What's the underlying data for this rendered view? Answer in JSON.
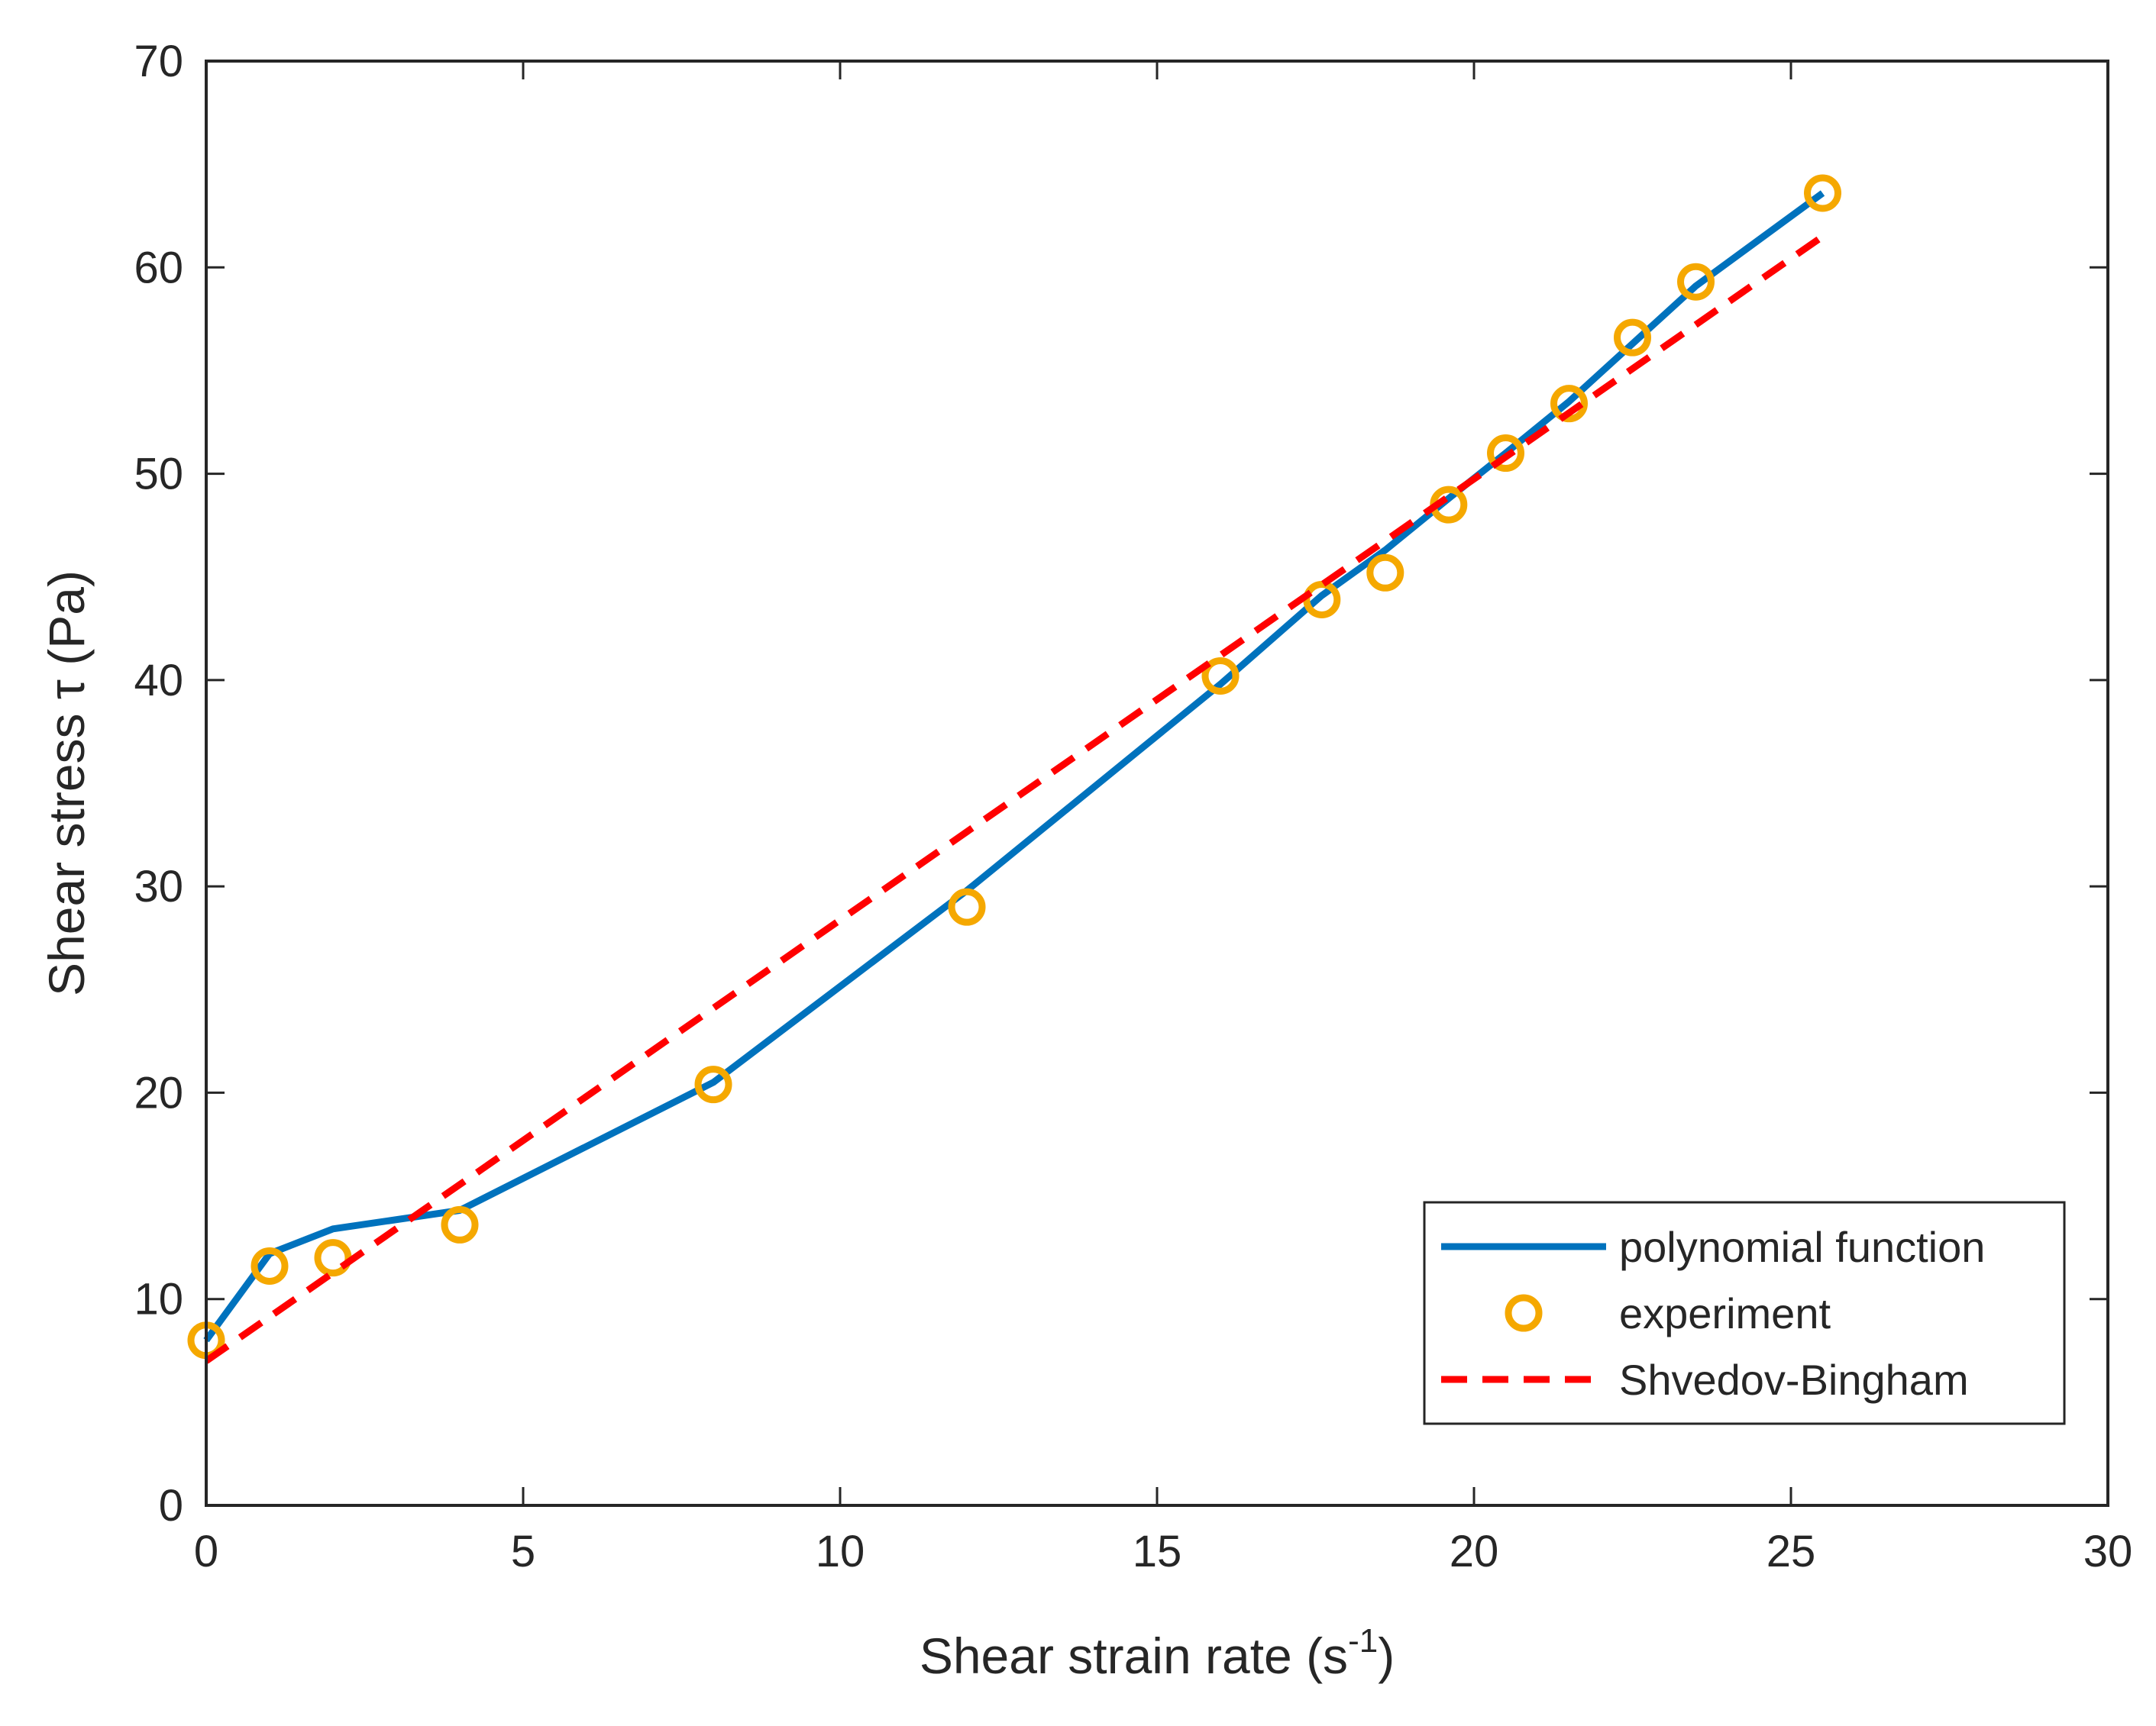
{
  "chart_data": {
    "type": "line",
    "title": "",
    "xlabel": "Shear strain rate (s",
    "xlabel_sup": "-1",
    "xlabel_end": ")",
    "ylabel": "Shear stress τ (Pa)",
    "xlim": [
      0,
      30
    ],
    "ylim": [
      0,
      70
    ],
    "xticks": [
      0,
      5,
      10,
      15,
      20,
      25,
      30
    ],
    "yticks": [
      0,
      10,
      20,
      30,
      40,
      50,
      60,
      70
    ],
    "legend_position": "bottom-right",
    "series": [
      {
        "name": "polynomial function",
        "style": "solid-line",
        "color": "#0072BD",
        "x": [
          0,
          1,
          2,
          4,
          8,
          12,
          16,
          17.6,
          18.6,
          19.6,
          20.5,
          21.5,
          22.5,
          23.5,
          25.5
        ],
        "y": [
          8.0,
          12.2,
          13.4,
          14.3,
          20.5,
          29.8,
          39.8,
          44.1,
          46.3,
          48.8,
          51.0,
          53.5,
          56.3,
          59.1,
          63.6
        ]
      },
      {
        "name": "experiment",
        "style": "markers",
        "color": "#F5A800",
        "x": [
          0,
          1,
          2,
          4,
          8,
          12,
          16,
          17.6,
          18.6,
          19.6,
          20.5,
          21.5,
          22.5,
          23.5,
          25.5
        ],
        "y": [
          8.0,
          11.6,
          12.0,
          13.6,
          20.4,
          29.0,
          40.2,
          43.9,
          45.2,
          48.5,
          51.0,
          53.4,
          56.6,
          59.3,
          63.6
        ]
      },
      {
        "name": "Shvedov-Bingham",
        "style": "dashed-line",
        "color": "#FF0000",
        "x": [
          0,
          25.5
        ],
        "y": [
          7.0,
          61.5
        ]
      }
    ]
  }
}
